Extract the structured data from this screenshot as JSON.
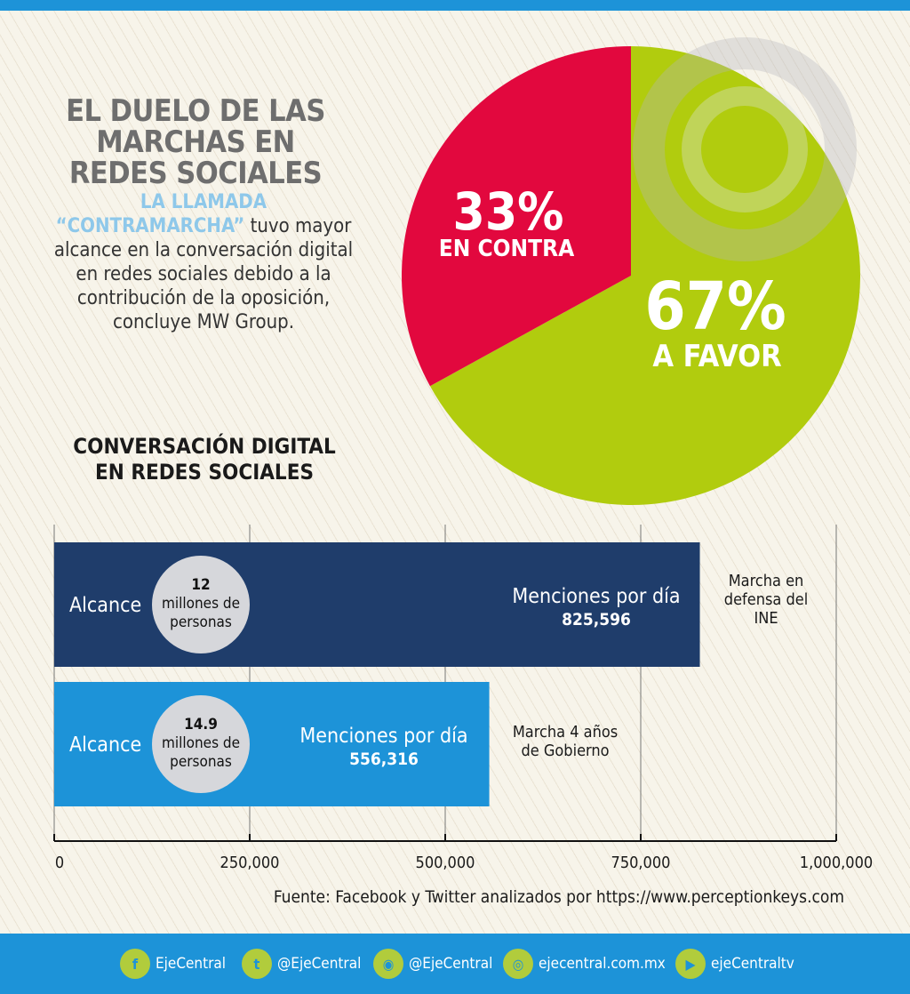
{
  "title_lines": [
    "EL DUELO DE LAS",
    "MARCHAS EN",
    "REDES SOCIALES"
  ],
  "intro": {
    "highlight_1": "LA LLAMADA",
    "highlight_2": "“CONTRAMARCHA”",
    "text_1": " tuvo mayor alcance en la conversación digital en redes sociales debido a la contribución de la oposición, concluye MW Group."
  },
  "section_title_lines": [
    "CONVERSACIÓN DIGITAL",
    "EN REDES SOCIALES"
  ],
  "chart_data": [
    {
      "type": "pie",
      "slices": [
        {
          "label": "A FAVOR",
          "value_label": "67%",
          "value": 67,
          "color": "#b1cc0e"
        },
        {
          "label": "EN CONTRA",
          "value_label": "33%",
          "value": 33,
          "color": "#e2083e"
        }
      ]
    },
    {
      "type": "bar",
      "orientation": "horizontal",
      "xlim": [
        0,
        1000000
      ],
      "xticks": [
        "0",
        "250,000",
        "500,000",
        "750,000",
        "1,000,000"
      ],
      "xtick_values": [
        0,
        250000,
        500000,
        750000,
        1000000
      ],
      "grid": true,
      "series": [
        {
          "name": "Marcha en defensa del INE",
          "value": 825596,
          "value_label": "825,596",
          "mentions_label": "Menciones por día",
          "reach_label": "Alcance",
          "reach_value": "12",
          "reach_unit_1": "millones de",
          "reach_unit_2": "personas",
          "color": "#1f3d6b",
          "name_lines": [
            "Marcha en",
            "defensa del",
            "INE"
          ]
        },
        {
          "name": "Marcha 4 años de Gobierno",
          "value": 556316,
          "value_label": "556,316",
          "mentions_label": "Menciones por día",
          "reach_label": "Alcance",
          "reach_value": "14.9",
          "reach_unit_1": "millones de",
          "reach_unit_2": "personas",
          "color": "#1d93d8",
          "name_lines": [
            "Marcha 4 años",
            "de Gobierno"
          ]
        }
      ]
    }
  ],
  "source": "Fuente: Facebook y Twitter analizados por https://www.perceptionkeys.com",
  "social": [
    {
      "icon": "facebook-icon",
      "glyph": "f",
      "label": "EjeCentral"
    },
    {
      "icon": "twitter-icon",
      "glyph": "t",
      "label": "@EjeCentral"
    },
    {
      "icon": "location-pin-icon",
      "glyph": "◉",
      "label": "@EjeCentral"
    },
    {
      "icon": "instagram-icon",
      "glyph": "◎",
      "label": "ejecentral.com.mx"
    },
    {
      "icon": "youtube-icon",
      "glyph": "▶",
      "label": "ejeCentraltv"
    }
  ]
}
